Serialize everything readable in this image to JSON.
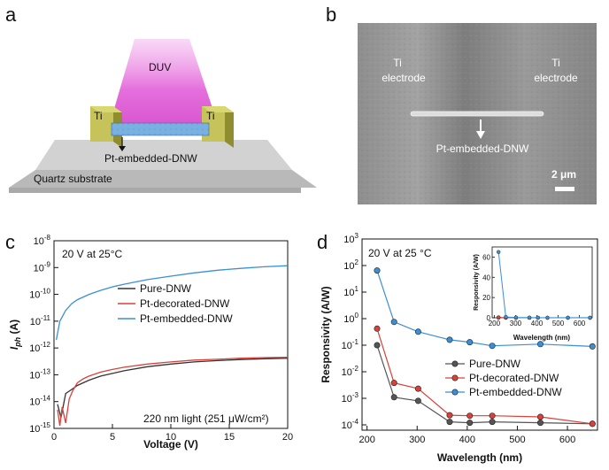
{
  "panels": {
    "a": {
      "label": "a",
      "light_label": "DUV",
      "left_electrode": "Ti",
      "right_electrode": "Ti",
      "wire_label": "Pt-embedded-DNW",
      "substrate_label": "Quartz substrate",
      "colors": {
        "light": "#e070d8",
        "electrode": "#b7b548",
        "wire": "#6fa8dc",
        "substrate": "#c8c8c8"
      }
    },
    "b": {
      "label": "b",
      "left_electrode_l1": "Ti",
      "left_electrode_l2": "electrode",
      "right_electrode_l1": "Ti",
      "right_electrode_l2": "electrode",
      "wire_label": "Pt-embedded-DNW",
      "scale_bar": "2 μm"
    },
    "c": {
      "label": "c"
    },
    "d": {
      "label": "d"
    }
  },
  "chart_data": [
    {
      "id": "c",
      "type": "line",
      "title": "",
      "annotation_top": "20 V at 25°C",
      "annotation_bottom": "220 nm light (251 μW/cm²)",
      "xlabel": "Voltage (V)",
      "ylabel": "Iph (A)",
      "ylabel_main": "I",
      "ylabel_sub": "ph",
      "ylabel_unit": " (A)",
      "xlim": [
        0,
        20
      ],
      "ylim_log10": [
        -15,
        -8
      ],
      "yscale": "log",
      "x_ticks": [
        "0",
        "5",
        "10",
        "15",
        "20"
      ],
      "y_ticks": [
        {
          "base": "10",
          "exp": "-8"
        },
        {
          "base": "10",
          "exp": "-9"
        },
        {
          "base": "10",
          "exp": "-10"
        },
        {
          "base": "10",
          "exp": "-11"
        },
        {
          "base": "10",
          "exp": "-12"
        },
        {
          "base": "10",
          "exp": "-13"
        },
        {
          "base": "10",
          "exp": "-14"
        },
        {
          "base": "10",
          "exp": "-15"
        }
      ],
      "series": [
        {
          "name": "Pure-DNW",
          "color": "#333333",
          "x": [
            0.3,
            0.6,
            1,
            1.5,
            2,
            3,
            4,
            5,
            6,
            8,
            10,
            12,
            14,
            16,
            18,
            20
          ],
          "log10_y": [
            -14.1,
            -14.6,
            -13.7,
            -13.55,
            -13.4,
            -13.2,
            -13.05,
            -12.95,
            -12.85,
            -12.7,
            -12.6,
            -12.52,
            -12.47,
            -12.43,
            -12.4,
            -12.38
          ]
        },
        {
          "name": "Pt-decorated-DNW",
          "color": "#d9413b",
          "x": [
            0.3,
            0.5,
            0.7,
            1,
            1.3,
            1.6,
            2,
            2.5,
            3,
            4,
            5,
            6,
            8,
            10,
            12,
            14,
            16,
            18,
            20
          ],
          "log10_y": [
            -14.3,
            -14.9,
            -14.2,
            -14.8,
            -13.9,
            -13.6,
            -13.3,
            -13.15,
            -13.05,
            -12.9,
            -12.8,
            -12.72,
            -12.6,
            -12.52,
            -12.45,
            -12.42,
            -12.38,
            -12.36,
            -12.35
          ]
        },
        {
          "name": "Pt-embedded-DNW",
          "color": "#3b8fd6",
          "x": [
            0.2,
            0.5,
            1,
            1.5,
            2,
            3,
            4,
            5,
            6,
            8,
            10,
            12,
            14,
            16,
            18,
            20
          ],
          "log10_y": [
            -11.7,
            -11.0,
            -10.6,
            -10.35,
            -10.2,
            -10.0,
            -9.85,
            -9.72,
            -9.62,
            -9.45,
            -9.32,
            -9.2,
            -9.1,
            -9.03,
            -8.97,
            -8.93
          ]
        }
      ],
      "legend": "center-right"
    },
    {
      "id": "d",
      "type": "line",
      "title": "",
      "annotation_top": "20 V at 25 °C",
      "xlabel": "Wavelength (nm)",
      "ylabel": "Responsivity (A/W)",
      "xlim": [
        190,
        660
      ],
      "ylim_log10": [
        -4.2,
        3
      ],
      "yscale": "log",
      "x_ticks": [
        "200",
        "300",
        "400",
        "500",
        "600"
      ],
      "y_ticks": [
        {
          "base": "10",
          "exp": "3"
        },
        {
          "base": "10",
          "exp": "2"
        },
        {
          "base": "10",
          "exp": "1"
        },
        {
          "base": "10",
          "exp": "0"
        },
        {
          "base": "10",
          "exp": "-1"
        },
        {
          "base": "10",
          "exp": "-2"
        },
        {
          "base": "10",
          "exp": "-3"
        },
        {
          "base": "10",
          "exp": "-4"
        }
      ],
      "series": [
        {
          "name": "Pure-DNW",
          "color": "#555555",
          "x": [
            220,
            254,
            302,
            365,
            405,
            450,
            546,
            650
          ],
          "y": [
            0.1,
            0.0011,
            0.0008,
            0.00013,
            0.00012,
            0.00013,
            0.00012,
            0.00011
          ]
        },
        {
          "name": "Pt-decorated-DNW",
          "color": "#d9413b",
          "x": [
            220,
            254,
            302,
            365,
            405,
            450,
            546,
            650
          ],
          "y": [
            0.42,
            0.0038,
            0.0023,
            0.00023,
            0.00022,
            0.00022,
            0.0002,
            0.00011
          ]
        },
        {
          "name": "Pt-embedded-DNW",
          "color": "#3b8fd6",
          "x": [
            220,
            254,
            302,
            365,
            405,
            450,
            546,
            650
          ],
          "y": [
            65,
            0.75,
            0.32,
            0.16,
            0.13,
            0.095,
            0.11,
            0.09
          ]
        }
      ],
      "legend": "bottom-right",
      "inset": {
        "xlabel": "Wavelength (nm)",
        "ylabel": "Responsivity (A/W)",
        "xlim": [
          190,
          660
        ],
        "ylim": [
          0,
          70
        ],
        "x_ticks": [
          "200",
          "300",
          "400",
          "500",
          "600"
        ],
        "y_ticks": [
          "0",
          "20",
          "40",
          "60"
        ],
        "series": [
          {
            "name": "Pure-DNW",
            "x": [
              220,
              254,
              302,
              365,
              405,
              450,
              546,
              650
            ],
            "y": [
              0.1,
              0,
              0,
              0,
              0,
              0,
              0,
              0
            ]
          },
          {
            "name": "Pt-decorated-DNW",
            "x": [
              220,
              254,
              302,
              365,
              405,
              450,
              546,
              650
            ],
            "y": [
              0.4,
              0,
              0,
              0,
              0,
              0,
              0,
              0
            ]
          },
          {
            "name": "Pt-embedded-DNW",
            "x": [
              220,
              254,
              302,
              365,
              405,
              450,
              546,
              650
            ],
            "y": [
              65,
              0.75,
              0.32,
              0.16,
              0.13,
              0.1,
              0.11,
              0.09
            ]
          }
        ]
      }
    }
  ]
}
